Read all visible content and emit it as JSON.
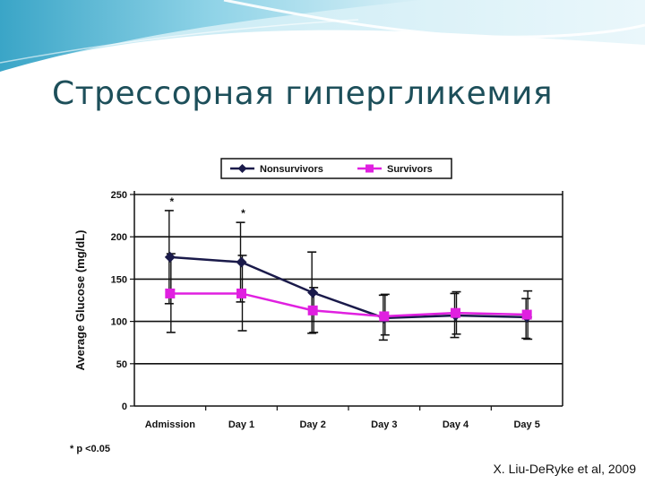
{
  "slide": {
    "title": "Стрессорная гипергликемия",
    "citation": "X. Liu-DeRyke et al, 2009",
    "colors": {
      "title": "#1d4f5a",
      "wave_dark": "#6ec6de",
      "wave_light": "#c7e9f3"
    }
  },
  "chart_data": {
    "type": "line",
    "categories": [
      "Admission",
      "Day 1",
      "Day 2",
      "Day 3",
      "Day 4",
      "Day 5"
    ],
    "ylabel": "Average Glucose (mg/dL)",
    "xlabel": "",
    "title": "",
    "ylim": [
      0,
      250
    ],
    "yticks": [
      0,
      50,
      100,
      150,
      200,
      250
    ],
    "grid": true,
    "legend_position": "top",
    "series": [
      {
        "name": "Nonsurvivors",
        "color": "#1a1a4a",
        "marker": "diamond",
        "values": [
          176,
          170,
          134,
          104,
          107,
          105
        ],
        "error_upper": [
          231,
          217,
          182,
          131,
          133,
          127
        ],
        "error_lower": [
          121,
          123,
          86,
          78,
          81,
          80
        ]
      },
      {
        "name": "Survivors",
        "color": "#e020e0",
        "marker": "square",
        "values": [
          133,
          133,
          113,
          106,
          110,
          108
        ],
        "error_upper": [
          180,
          178,
          140,
          132,
          135,
          136
        ],
        "error_lower": [
          87,
          89,
          87,
          84,
          85,
          79
        ]
      }
    ],
    "significance_marker": "*",
    "significance_categories": [
      "Admission",
      "Day 1"
    ],
    "footnote": "* p <0.05"
  }
}
